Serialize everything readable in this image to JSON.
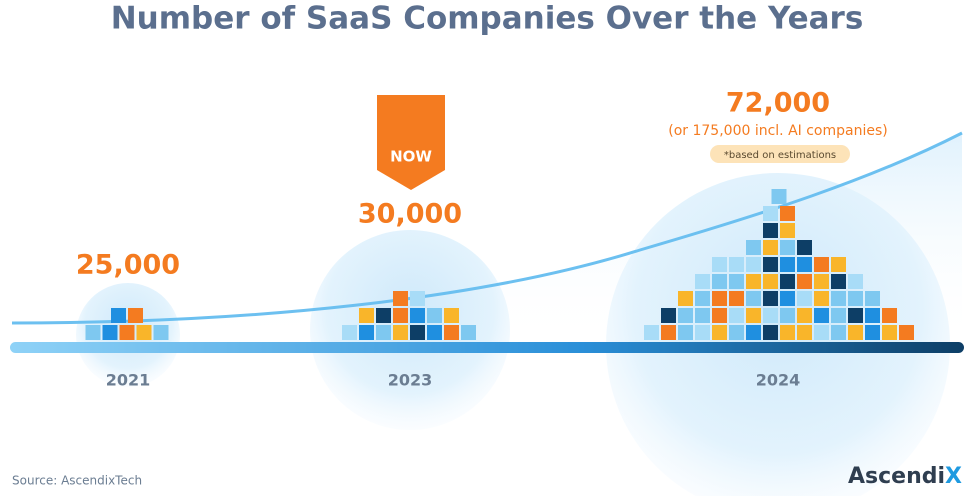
{
  "title": "Number of SaaS Companies Over the Years",
  "milestones": [
    {
      "year": "2021",
      "count": "25,000"
    },
    {
      "year": "2023",
      "count": "30,000",
      "badge": "NOW"
    },
    {
      "year": "2024",
      "count": "72,000",
      "detail": "(or 175,000 incl. AI companies)",
      "note": "*based on estimations"
    }
  ],
  "source": "Source:  AscendixTech",
  "brand": {
    "name": "Ascendi",
    "mark": "X"
  }
}
